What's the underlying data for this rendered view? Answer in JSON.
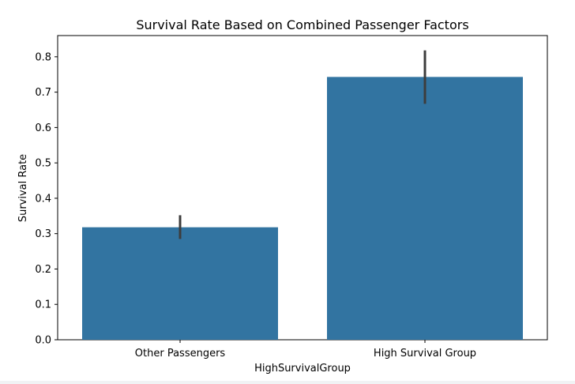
{
  "chart_data": {
    "type": "bar",
    "title": "Survival Rate Based on Combined Passenger Factors",
    "xlabel": "HighSurvivalGroup",
    "ylabel": "Survival Rate",
    "categories": [
      "Other Passengers",
      "High Survival Group"
    ],
    "values": [
      0.318,
      0.743
    ],
    "error_bars": [
      {
        "low": 0.285,
        "high": 0.352
      },
      {
        "low": 0.667,
        "high": 0.818
      }
    ],
    "ylim": [
      0,
      0.86
    ],
    "yticks": [
      "0.0",
      "0.1",
      "0.2",
      "0.3",
      "0.4",
      "0.5",
      "0.6",
      "0.7",
      "0.8"
    ],
    "bar_color": "#3274a1",
    "error_color": "#3d3d3d",
    "grid": false,
    "legend": "none"
  }
}
